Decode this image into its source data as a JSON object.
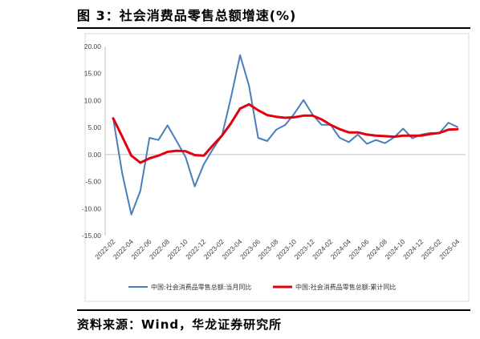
{
  "header": {
    "title": "图 3：社会消费品零售总额增速(%)"
  },
  "footer": {
    "source": "资料来源：Wind，华龙证券研究所"
  },
  "chart_data": {
    "type": "line",
    "ylim": [
      -15,
      20
    ],
    "yticks": [
      "20.00",
      "15.00",
      "10.00",
      "5.00",
      "0.00",
      "-5.00",
      "-10.00",
      "-15.00"
    ],
    "ytick_values": [
      20,
      15,
      10,
      5,
      0,
      -5,
      -10,
      -15
    ],
    "x_tick_labels": [
      "2022-02",
      "2022-04",
      "2022-06",
      "2022-08",
      "2022-10",
      "2022-12",
      "2023-02",
      "2023-04",
      "2023-06",
      "2023-08",
      "2023-10",
      "2023-12",
      "2024-02",
      "2024-04",
      "2024-06",
      "2024-08",
      "2024-10",
      "2024-12",
      "2025-02",
      "2025-04"
    ],
    "x": [
      "2022-02",
      "2022-03",
      "2022-04",
      "2022-05",
      "2022-06",
      "2022-07",
      "2022-08",
      "2022-09",
      "2022-10",
      "2022-11",
      "2022-12",
      "2023-01",
      "2023-02",
      "2023-03",
      "2023-04",
      "2023-05",
      "2023-06",
      "2023-07",
      "2023-08",
      "2023-09",
      "2023-10",
      "2023-11",
      "2023-12",
      "2024-01",
      "2024-02",
      "2024-03",
      "2024-04",
      "2024-05",
      "2024-06",
      "2024-07",
      "2024-08",
      "2024-09",
      "2024-10",
      "2024-11",
      "2024-12",
      "2025-01",
      "2025-02",
      "2025-03",
      "2025-04"
    ],
    "series": [
      {
        "name": "中国:社会消费品零售总额:当月同比",
        "color": "#4a7ebb",
        "values": [
          6.7,
          -3.5,
          -11.1,
          -6.7,
          3.1,
          2.7,
          5.4,
          2.5,
          -0.5,
          -5.9,
          -1.8,
          1.0,
          3.5,
          10.6,
          18.4,
          12.7,
          3.1,
          2.5,
          4.6,
          5.5,
          7.6,
          10.1,
          7.4,
          5.5,
          5.5,
          3.1,
          2.3,
          3.7,
          2.0,
          2.7,
          2.1,
          3.2,
          4.8,
          3.0,
          3.7,
          4.0,
          4.0,
          5.9,
          5.1
        ]
      },
      {
        "name": "中国:社会消费品零售总额:累计同比",
        "color": "#e3000f",
        "values": [
          6.7,
          3.3,
          -0.2,
          -1.5,
          -0.7,
          -0.2,
          0.5,
          0.7,
          0.6,
          -0.1,
          -0.2,
          1.7,
          3.5,
          5.8,
          8.5,
          9.3,
          8.2,
          7.3,
          7.0,
          6.8,
          6.9,
          7.2,
          7.2,
          6.5,
          5.5,
          4.7,
          4.1,
          4.1,
          3.7,
          3.5,
          3.4,
          3.3,
          3.5,
          3.5,
          3.5,
          3.8,
          4.0,
          4.6,
          4.7
        ]
      }
    ]
  }
}
